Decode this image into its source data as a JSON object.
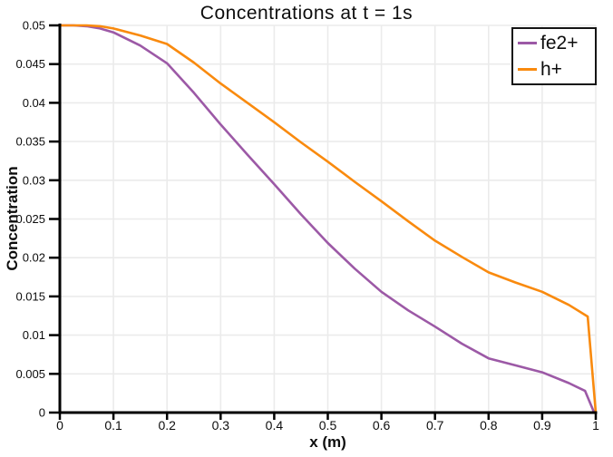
{
  "chart_data": {
    "type": "line",
    "title": "Concentrations at t = 1s",
    "xlabel": "x (m)",
    "ylabel": "Concentration",
    "xlim": [
      0,
      1
    ],
    "ylim": [
      0,
      0.05
    ],
    "grid": true,
    "legend_position": "top-right",
    "x_ticks": [
      0,
      0.1,
      0.2,
      0.3,
      0.4,
      0.5,
      0.6,
      0.7,
      0.8,
      0.9,
      1
    ],
    "x_tick_labels": [
      "0",
      "0.1",
      "0.2",
      "0.3",
      "0.4",
      "0.5",
      "0.6",
      "0.7",
      "0.8",
      "0.9",
      "1"
    ],
    "y_ticks": [
      0,
      0.005,
      0.01,
      0.015,
      0.02,
      0.025,
      0.03,
      0.035,
      0.04,
      0.045,
      0.05
    ],
    "y_tick_labels": [
      "0",
      "0.005",
      "0.01",
      "0.015",
      "0.02",
      "0.025",
      "0.03",
      "0.035",
      "0.04",
      "0.045",
      "0.05"
    ],
    "series": [
      {
        "name": "fe2+",
        "color": "#9c59a6",
        "x": [
          0,
          0.025,
          0.05,
          0.075,
          0.1,
          0.15,
          0.2,
          0.25,
          0.3,
          0.35,
          0.4,
          0.45,
          0.5,
          0.55,
          0.6,
          0.65,
          0.7,
          0.75,
          0.8,
          0.85,
          0.9,
          0.95,
          0.98,
          0.997
        ],
        "y": [
          0.05,
          0.05,
          0.0499,
          0.0496,
          0.0491,
          0.0474,
          0.0451,
          0.0413,
          0.0372,
          0.0333,
          0.0295,
          0.0256,
          0.0219,
          0.0186,
          0.0156,
          0.0132,
          0.0111,
          0.0089,
          0.007,
          0.0061,
          0.0052,
          0.0038,
          0.0028,
          0.0
        ]
      },
      {
        "name": "h+",
        "color": "#f98a0e",
        "x": [
          0,
          0.025,
          0.05,
          0.075,
          0.1,
          0.15,
          0.2,
          0.25,
          0.3,
          0.35,
          0.4,
          0.45,
          0.5,
          0.55,
          0.6,
          0.65,
          0.7,
          0.75,
          0.8,
          0.85,
          0.9,
          0.95,
          0.985,
          1.0
        ],
        "y": [
          0.05,
          0.05,
          0.05,
          0.0499,
          0.0496,
          0.0487,
          0.0476,
          0.0452,
          0.0425,
          0.04,
          0.0375,
          0.0349,
          0.0324,
          0.0298,
          0.0273,
          0.0247,
          0.0222,
          0.0201,
          0.0181,
          0.0168,
          0.0156,
          0.0139,
          0.0124,
          0.0
        ]
      }
    ],
    "style": {
      "grid_color": "#ebebeb",
      "axis_color": "#000000",
      "tick_label_color": "#0d0d0d",
      "background": "#ffffff",
      "legend_border_color": "#141414"
    }
  }
}
